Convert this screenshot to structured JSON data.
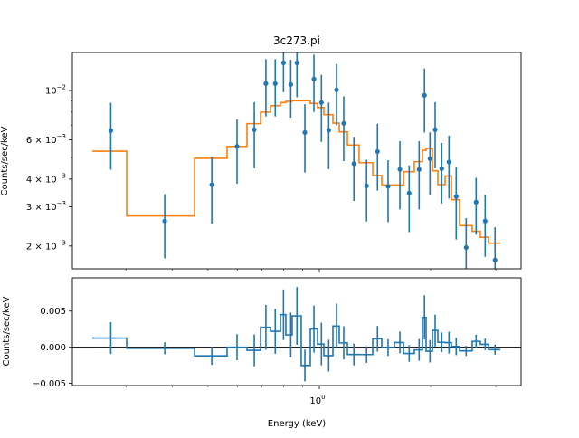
{
  "chart_data": [
    {
      "panel": "data-and-model",
      "type": "scatter",
      "title": "3c273.pi",
      "xlabel": "",
      "ylabel": "Counts/sec/keV",
      "xscale": "log",
      "yscale": "log",
      "xlim": [
        0.215,
        3.51
      ],
      "ylim": [
        0.00158,
        0.01483
      ],
      "grid": false,
      "y_ticks": [
        {
          "value": 0.01,
          "mantissa": "10",
          "exp": "−2"
        },
        {
          "value": 0.006,
          "mantissa": "6 × 10",
          "exp": "−3"
        },
        {
          "value": 0.004,
          "mantissa": "4 × 10",
          "exp": "−3"
        },
        {
          "value": 0.003,
          "mantissa": "3 × 10",
          "exp": "−3"
        },
        {
          "value": 0.002,
          "mantissa": "2 × 10",
          "exp": "−3"
        }
      ],
      "y_minor_ticks": [
        0.005,
        0.007,
        0.008,
        0.009
      ],
      "x_major_ticks": [
        1
      ],
      "x_minor_ticks": [
        0.3,
        0.4,
        0.5,
        0.6,
        0.7,
        0.8,
        0.9,
        2,
        3
      ],
      "data_color": "#1f77b4",
      "model_color": "#ff7f0e",
      "data": {
        "x": [
          0.273,
          0.382,
          0.512,
          0.599,
          0.667,
          0.717,
          0.76,
          0.8,
          0.837,
          0.87,
          0.914,
          0.967,
          1.013,
          1.06,
          1.113,
          1.164,
          1.24,
          1.342,
          1.436,
          1.534,
          1.651,
          1.749,
          1.861,
          1.924,
          1.991,
          2.056,
          2.142,
          2.241,
          2.344,
          2.494,
          2.653,
          2.807,
          2.985
        ],
        "y": [
          0.00661,
          0.00259,
          0.00377,
          0.00561,
          0.00667,
          0.01075,
          0.01075,
          0.01333,
          0.01065,
          0.01333,
          0.00648,
          0.01126,
          0.00883,
          0.00663,
          0.01007,
          0.00712,
          0.00469,
          0.00373,
          0.00532,
          0.00371,
          0.00442,
          0.00346,
          0.00442,
          0.00952,
          0.00494,
          0.00667,
          0.00446,
          0.00477,
          0.00334,
          0.00197,
          0.00315,
          0.00259,
          0.00173
        ],
        "yerr": [
          0.0022,
          0.00083,
          0.00125,
          0.0018,
          0.0022,
          0.0031,
          0.0031,
          0.0035,
          0.0031,
          0.004,
          0.0022,
          0.00325,
          0.00295,
          0.0022,
          0.0031,
          0.0023,
          0.0015,
          0.00115,
          0.00177,
          0.00115,
          0.0015,
          0.00115,
          0.0015,
          0.00305,
          0.00155,
          0.0022,
          0.00135,
          0.0015,
          0.0012,
          0.0007,
          0.0009,
          0.0008,
          0.0007
        ]
      },
      "model": {
        "bin_edges": [
          0.2434,
          0.3014,
          0.4599,
          0.5631,
          0.6374,
          0.6936,
          0.7379,
          0.785,
          0.8117,
          0.8444,
          0.8934,
          0.9453,
          0.9888,
          1.0285,
          1.0881,
          1.132,
          1.1909,
          1.2809,
          1.3943,
          1.4749,
          1.5958,
          1.6883,
          1.8056,
          1.9001,
          1.9434,
          2.0215,
          2.0912,
          2.1877,
          2.2751,
          2.3933,
          2.5891,
          2.7237,
          2.8654,
          3.0832
        ],
        "values": [
          0.00534,
          0.00273,
          0.00496,
          0.00561,
          0.0071,
          0.008,
          0.00855,
          0.00883,
          0.00895,
          0.009,
          0.009,
          0.00875,
          0.00839,
          0.00779,
          0.00714,
          0.00652,
          0.00569,
          0.00474,
          0.00415,
          0.00376,
          0.00376,
          0.00432,
          0.00479,
          0.00539,
          0.00549,
          0.00436,
          0.00378,
          0.00413,
          0.00323,
          0.00247,
          0.00233,
          0.00219,
          0.00206
        ]
      }
    },
    {
      "panel": "residuals",
      "type": "scatter",
      "xlabel": "Energy (keV)",
      "ylabel": "Counts/sec/keV",
      "xscale": "log",
      "yscale": "linear",
      "xlim": [
        0.215,
        3.51
      ],
      "ylim": [
        -0.0053,
        0.0096
      ],
      "grid": false,
      "reference_line": 0,
      "y_ticks": [
        {
          "value": 0.005,
          "label": "0.005"
        },
        {
          "value": 0.0,
          "label": "0.000"
        },
        {
          "value": -0.005,
          "label": "−0.005"
        }
      ],
      "x_ticks": [
        {
          "value": 1,
          "mantissa": "10",
          "exp": "0"
        }
      ],
      "x_minor_ticks": [
        0.3,
        0.4,
        0.5,
        0.6,
        0.7,
        0.8,
        0.9,
        2,
        3
      ],
      "color": "#1f77b4",
      "residuals": "data.y − model.values per bin, error bars data.yerr"
    }
  ]
}
